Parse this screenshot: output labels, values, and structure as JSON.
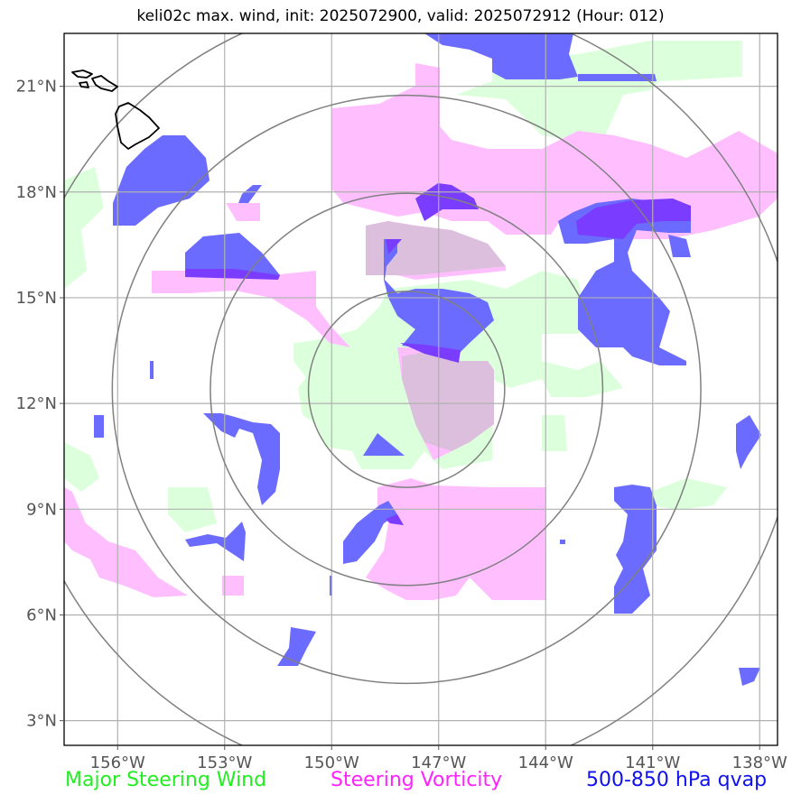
{
  "title": "keli02c max. wind, init: 2025072900, valid: 2025072912 (Hour: 012)",
  "map": {
    "lon_range": [
      -157.5,
      -137.5
    ],
    "lat_range": [
      2.3,
      22.5
    ],
    "center": {
      "lon": -147.9,
      "lat": 12.4
    },
    "ring_radii_deg": [
      2.75,
      5.5,
      8.25,
      11.0
    ],
    "x_ticks": [
      {
        "value": -156,
        "label": "156°W"
      },
      {
        "value": -153,
        "label": "153°W"
      },
      {
        "value": -150,
        "label": "150°W"
      },
      {
        "value": -147,
        "label": "147°W"
      },
      {
        "value": -144,
        "label": "144°W"
      },
      {
        "value": -141,
        "label": "141°W"
      },
      {
        "value": -138,
        "label": "138°W"
      }
    ],
    "y_ticks": [
      {
        "value": 3,
        "label": "3°N"
      },
      {
        "value": 6,
        "label": "6°N"
      },
      {
        "value": 9,
        "label": "9°N"
      },
      {
        "value": 12,
        "label": "12°N"
      },
      {
        "value": 15,
        "label": "15°N"
      },
      {
        "value": 18,
        "label": "18°N"
      },
      {
        "value": 21,
        "label": "21°N"
      }
    ],
    "colors": {
      "steering_wind": "#dcffdc",
      "steering_vorticity": "#ffbfff",
      "qvap": "#6b6bff",
      "qvap_strong": "#7a3cff",
      "rings": "#808080",
      "grid": "#b0b0b0",
      "coast": "#000000"
    }
  },
  "legend": {
    "green": "Major Steering Wind",
    "pink": "Steering Vorticity",
    "blue": "500-850 hPa qvap"
  }
}
